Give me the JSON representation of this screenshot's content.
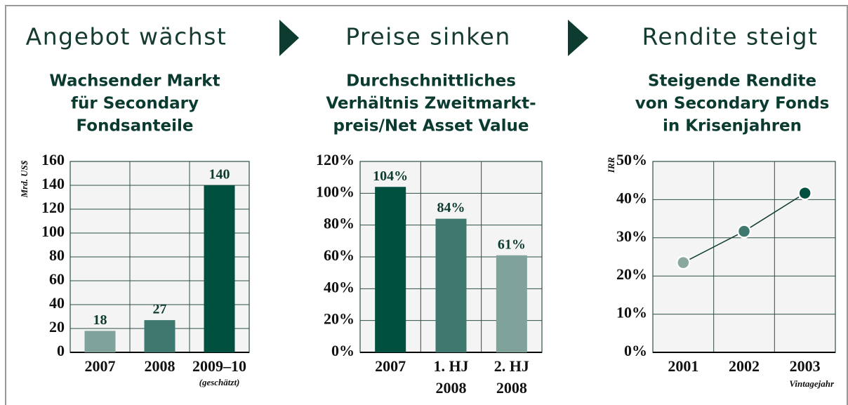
{
  "chart_data": [
    {
      "type": "bar",
      "section_title": "Angebot wächst",
      "title": [
        "Wachsender Markt",
        "für Secondary",
        "Fondsanteile"
      ],
      "ylabel": "Mrd. US$",
      "categories": [
        [
          "2007"
        ],
        [
          "2008"
        ],
        [
          "2009–10"
        ]
      ],
      "note": "(geschätzt)",
      "values": [
        18,
        27,
        140
      ],
      "colors": [
        "#7fa39a",
        "#3f786e",
        "#00503f"
      ],
      "ylim": [
        0,
        160
      ],
      "yticks": [
        0,
        20,
        40,
        60,
        80,
        100,
        120,
        140,
        160
      ],
      "grid": true
    },
    {
      "type": "bar",
      "section_title": "Preise sinken",
      "title": [
        "Durchschnittliches",
        "Verhältnis Zweitmarkt-",
        "preis/Net Asset Value"
      ],
      "categories": [
        [
          "2007"
        ],
        [
          "1. HJ",
          "2008"
        ],
        [
          "2. HJ",
          "2008"
        ]
      ],
      "values": [
        104,
        84,
        61
      ],
      "value_labels": [
        "104%",
        "84%",
        "61%"
      ],
      "colors": [
        "#00503f",
        "#3f786e",
        "#7fa39a"
      ],
      "ylim": [
        0,
        120
      ],
      "yticks": [
        {
          "value": 0,
          "label": "0%"
        },
        {
          "value": 20,
          "label": "20%"
        },
        {
          "value": 40,
          "label": "40%"
        },
        {
          "value": 60,
          "label": "60%"
        },
        {
          "value": 80,
          "label": "80%"
        },
        {
          "value": 100,
          "label": "100%"
        },
        {
          "value": 120,
          "label": "120%"
        }
      ],
      "grid": true
    },
    {
      "type": "line",
      "section_title": "Rendite steigt",
      "title": [
        "Steigende Rendite",
        "von Secondary Fonds",
        "in Krisenjahren"
      ],
      "ylabel": "IRR",
      "xlabel": "Vintagejahr",
      "categories": [
        [
          "2001"
        ],
        [
          "2002"
        ],
        [
          "2003"
        ]
      ],
      "values": [
        23.5,
        31.7,
        41.7
      ],
      "colors": [
        "#8aa89f",
        "#3f786e",
        "#00503f"
      ],
      "line_color": "#0d3b30",
      "ylim": [
        0,
        50
      ],
      "yticks": [
        {
          "value": 0,
          "label": "0%"
        },
        {
          "value": 10,
          "label": "10%"
        },
        {
          "value": 20,
          "label": "20%"
        },
        {
          "value": 30,
          "label": "30%"
        },
        {
          "value": 40,
          "label": "40%"
        },
        {
          "value": 50,
          "label": "50%"
        }
      ],
      "grid": true
    }
  ]
}
